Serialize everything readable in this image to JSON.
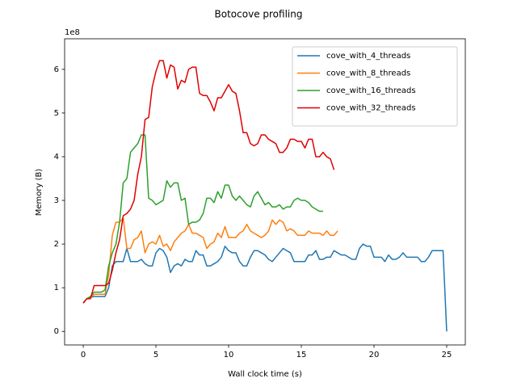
{
  "chart_data": {
    "type": "line",
    "title": "Botocove profiling",
    "xlabel": "Wall clock time (s)",
    "ylabel": "Memory (B)",
    "y_offset_label": "1e8",
    "legend": "upper right",
    "x": [
      0,
      0.25,
      0.5,
      0.75,
      1,
      1.25,
      1.5,
      1.75,
      2,
      2.25,
      2.5,
      2.75,
      3,
      3.25,
      3.5,
      3.75,
      4,
      4.25,
      4.5,
      4.75,
      5,
      5.25,
      5.5,
      5.75,
      6,
      6.25,
      6.5,
      6.75,
      7,
      7.25,
      7.5,
      7.75,
      8,
      8.25,
      8.5,
      8.75,
      9,
      9.25,
      9.5,
      9.75,
      10,
      10.25,
      10.5,
      10.75,
      11,
      11.25,
      11.5,
      11.75,
      12,
      12.25,
      12.5,
      12.75,
      13,
      13.25,
      13.5,
      13.75,
      14,
      14.25,
      14.5,
      14.75,
      15,
      15.25,
      15.5,
      15.75,
      16,
      16.25,
      16.5,
      16.75,
      17,
      17.25,
      17.5,
      17.75,
      18,
      18.25,
      18.5,
      18.75,
      19,
      19.25,
      19.5,
      19.75,
      20,
      20.25,
      20.5,
      20.75,
      21,
      21.25,
      21.5,
      21.75,
      22,
      22.25,
      22.5,
      22.75,
      23,
      23.25,
      23.5,
      23.75,
      24,
      24.25,
      24.5,
      24.75,
      25
    ],
    "series": [
      {
        "name": "cove_with_4_threads",
        "color": "#1f77b4",
        "values": [
          0.65,
          0.75,
          0.78,
          0.8,
          0.8,
          0.8,
          0.8,
          1.0,
          1.5,
          1.6,
          1.6,
          1.6,
          1.9,
          1.6,
          1.6,
          1.6,
          1.65,
          1.55,
          1.5,
          1.5,
          1.8,
          1.9,
          1.85,
          1.7,
          1.35,
          1.5,
          1.55,
          1.5,
          1.65,
          1.6,
          1.6,
          1.85,
          1.75,
          1.75,
          1.5,
          1.5,
          1.55,
          1.6,
          1.7,
          1.95,
          1.85,
          1.8,
          1.8,
          1.6,
          1.5,
          1.5,
          1.7,
          1.85,
          1.85,
          1.8,
          1.75,
          1.65,
          1.6,
          1.7,
          1.8,
          1.9,
          1.85,
          1.8,
          1.6,
          1.6,
          1.6,
          1.6,
          1.75,
          1.75,
          1.85,
          1.65,
          1.65,
          1.7,
          1.7,
          1.85,
          1.8,
          1.75,
          1.75,
          1.7,
          1.65,
          1.65,
          1.9,
          2.0,
          1.95,
          1.95,
          1.7,
          1.7,
          1.7,
          1.6,
          1.75,
          1.65,
          1.65,
          1.7,
          1.8,
          1.7,
          1.7,
          1.7,
          1.7,
          1.6,
          1.6,
          1.7,
          1.85,
          1.85,
          1.85,
          1.85,
          0.0
        ]
      },
      {
        "name": "cove_with_8_threads",
        "color": "#ff7f0e",
        "values": [
          0.65,
          0.75,
          0.78,
          0.85,
          0.85,
          0.85,
          0.85,
          1.3,
          2.2,
          2.5,
          2.5,
          2.6,
          1.9,
          1.9,
          2.1,
          2.15,
          2.3,
          1.8,
          2.0,
          2.05,
          2.0,
          2.2,
          1.95,
          2.0,
          1.85,
          2.05,
          2.15,
          2.25,
          2.3,
          2.45,
          2.25,
          2.25,
          2.2,
          2.15,
          1.9,
          2.0,
          2.05,
          2.25,
          2.15,
          2.4,
          2.15,
          2.15,
          2.15,
          2.25,
          2.3,
          2.45,
          2.3,
          2.25,
          2.2,
          2.15,
          2.2,
          2.3,
          2.55,
          2.45,
          2.55,
          2.5,
          2.3,
          2.35,
          2.3,
          2.2,
          2.2,
          2.2,
          2.3,
          2.25,
          2.25,
          2.25,
          2.2,
          2.3,
          2.2,
          2.2,
          2.3,
          null,
          null,
          null,
          null,
          null,
          null,
          null,
          null,
          null,
          null,
          null,
          null,
          null,
          null,
          null,
          null,
          null,
          null,
          null,
          null,
          null,
          null,
          null,
          null,
          null,
          null,
          null,
          null,
          null,
          null
        ]
      },
      {
        "name": "cove_with_16_threads",
        "color": "#2ca02c",
        "values": [
          0.65,
          0.75,
          0.8,
          0.9,
          0.9,
          0.9,
          0.95,
          1.5,
          1.8,
          2.0,
          2.5,
          3.4,
          3.5,
          4.1,
          4.2,
          4.3,
          4.5,
          4.5,
          3.05,
          3.0,
          2.9,
          2.95,
          3.0,
          3.45,
          3.3,
          3.4,
          3.4,
          3.0,
          3.05,
          2.45,
          2.5,
          2.5,
          2.55,
          2.7,
          3.05,
          3.05,
          2.95,
          3.2,
          3.05,
          3.35,
          3.35,
          3.1,
          3.0,
          3.1,
          3.0,
          2.9,
          2.85,
          3.1,
          3.2,
          3.05,
          2.9,
          2.95,
          2.85,
          2.85,
          2.9,
          2.8,
          2.85,
          2.85,
          3.0,
          3.05,
          3.0,
          3.0,
          2.95,
          2.85,
          2.8,
          2.75,
          2.75,
          null,
          null,
          null,
          null,
          null,
          null,
          null,
          null,
          null,
          null,
          null,
          null,
          null,
          null,
          null,
          null,
          null,
          null,
          null,
          null,
          null,
          null,
          null,
          null,
          null,
          null,
          null,
          null,
          null,
          null,
          null,
          null,
          null,
          null
        ]
      },
      {
        "name": "cove_with_32_threads",
        "color": "#e00000",
        "values": [
          0.65,
          0.75,
          0.75,
          1.05,
          1.05,
          1.05,
          1.05,
          1.1,
          1.4,
          1.8,
          2.1,
          2.65,
          2.7,
          2.8,
          3.0,
          3.6,
          4.0,
          4.85,
          4.9,
          5.6,
          5.95,
          6.2,
          6.2,
          5.8,
          6.1,
          6.05,
          5.55,
          5.75,
          5.7,
          6.0,
          6.05,
          6.05,
          5.45,
          5.4,
          5.4,
          5.25,
          5.05,
          5.35,
          5.35,
          5.5,
          5.65,
          5.5,
          5.45,
          5.05,
          4.55,
          4.55,
          4.3,
          4.25,
          4.3,
          4.5,
          4.5,
          4.4,
          4.35,
          4.3,
          4.1,
          4.1,
          4.2,
          4.4,
          4.4,
          4.35,
          4.35,
          4.2,
          4.4,
          4.4,
          4.0,
          4.0,
          4.1,
          4.0,
          3.95,
          3.7,
          null,
          null,
          null,
          null,
          null,
          null,
          null,
          null,
          null,
          null,
          null,
          null,
          null,
          null,
          null,
          null,
          null,
          null,
          null,
          null,
          null,
          null,
          null,
          null,
          null,
          null,
          null,
          null,
          null,
          null,
          null
        ]
      }
    ],
    "xlim": [
      -1.28,
      26.28
    ],
    "xticks": [
      0,
      5,
      10,
      15,
      20,
      25
    ],
    "ylim": [
      -0.31,
      6.7
    ],
    "yticks": [
      0,
      1,
      2,
      3,
      4,
      5,
      6
    ]
  }
}
